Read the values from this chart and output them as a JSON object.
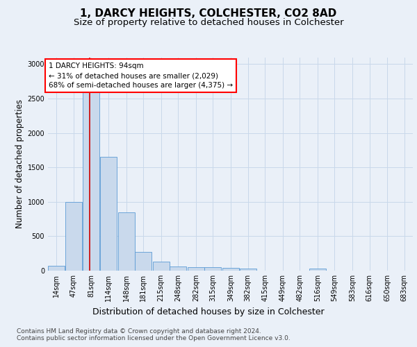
{
  "title": "1, DARCY HEIGHTS, COLCHESTER, CO2 8AD",
  "subtitle": "Size of property relative to detached houses in Colchester",
  "xlabel": "Distribution of detached houses by size in Colchester",
  "ylabel": "Number of detached properties",
  "footer_line1": "Contains HM Land Registry data © Crown copyright and database right 2024.",
  "footer_line2": "Contains public sector information licensed under the Open Government Licence v3.0.",
  "annotation_line1": "1 DARCY HEIGHTS: 94sqm",
  "annotation_line2": "← 31% of detached houses are smaller (2,029)",
  "annotation_line3": "68% of semi-detached houses are larger (4,375) →",
  "bar_edges": [
    14,
    47,
    81,
    114,
    148,
    181,
    215,
    248,
    282,
    315,
    349,
    382,
    415,
    449,
    482,
    516,
    549,
    583,
    616,
    650,
    683
  ],
  "bar_heights": [
    75,
    1000,
    2950,
    1650,
    850,
    270,
    130,
    60,
    50,
    50,
    40,
    30,
    5,
    0,
    0,
    30,
    0,
    0,
    0,
    0,
    0
  ],
  "bar_color": "#c9d9ec",
  "bar_edge_color": "#5b9bd5",
  "vline_color": "#cc0000",
  "vline_x": 94,
  "ylim": [
    0,
    3100
  ],
  "yticks": [
    0,
    500,
    1000,
    1500,
    2000,
    2500,
    3000
  ],
  "bg_color": "#eaf0f8",
  "grid_color": "#c8d8ea",
  "title_fontsize": 11,
  "subtitle_fontsize": 9.5,
  "tick_fontsize": 7,
  "ylabel_fontsize": 8.5,
  "xlabel_fontsize": 9,
  "footer_fontsize": 6.5,
  "annotation_fontsize": 7.5
}
